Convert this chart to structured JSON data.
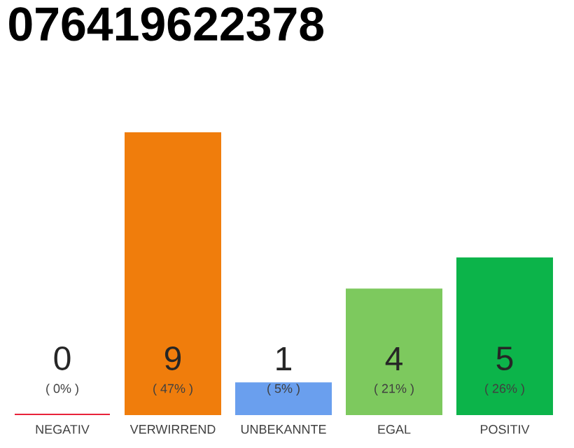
{
  "chart_data": {
    "type": "bar",
    "title": "076419622378",
    "categories": [
      "NEGATIV",
      "VERWIRREND",
      "UNBEKANNTE",
      "EGAL",
      "POSITIV"
    ],
    "values": [
      0,
      9,
      1,
      4,
      5
    ],
    "colors": [
      "#e8223a",
      "#f07d0c",
      "#6a9fee",
      "#7dc95e",
      "#0cb44a"
    ],
    "data_labels": true,
    "annotations": [
      "( 0% )",
      "( 47% )",
      "( 5% )",
      "( 21% )",
      "( 26% )"
    ]
  }
}
